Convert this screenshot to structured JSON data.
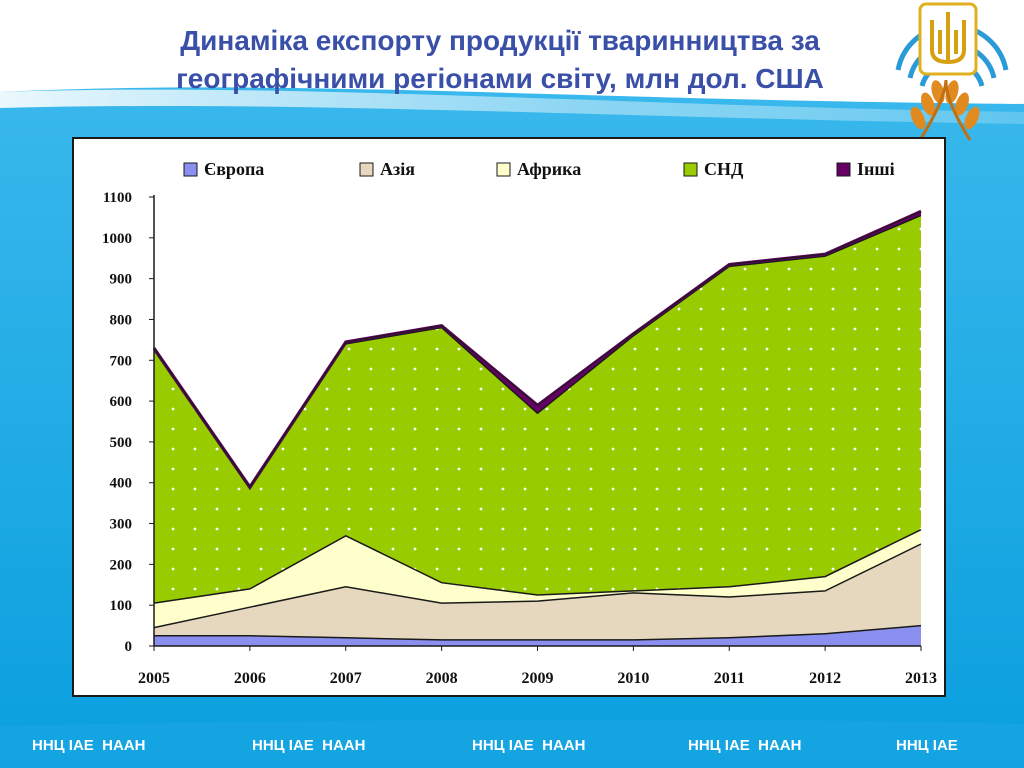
{
  "title_line1": "Динаміка експорту продукції тваринництва за",
  "title_line2": "географічними регіонами світу, млн дол. США",
  "footer": [
    "ННЦ ІАЕ  НААН",
    "ННЦ ІАЕ  НААН",
    "ННЦ ІАЕ  НААН",
    "ННЦ ІАЕ  НААН",
    "ННЦ ІАЕ"
  ],
  "colors": {
    "background_band": "#0aa3e0",
    "title": "#3a4fa8",
    "europe": "#8b8ff0",
    "asia": "#e6d8bf",
    "africa": "#ffffcc",
    "cis": "#99cc00",
    "other": "#660066"
  },
  "logo": {
    "icon": "tryzub-wheat-emblem-icon"
  },
  "chart_data": {
    "type": "area",
    "stacked": true,
    "categories": [
      "2005",
      "2006",
      "2007",
      "2008",
      "2009",
      "2010",
      "2011",
      "2012",
      "2013"
    ],
    "series": [
      {
        "name": "Європа",
        "color": "#8b8ff0",
        "values": [
          25,
          25,
          20,
          15,
          15,
          15,
          20,
          30,
          50
        ]
      },
      {
        "name": "Азія",
        "color": "#e6d8bf",
        "values": [
          20,
          70,
          125,
          90,
          95,
          115,
          100,
          105,
          200
        ]
      },
      {
        "name": "Африка",
        "color": "#ffffcc",
        "values": [
          60,
          45,
          125,
          50,
          15,
          5,
          25,
          35,
          35
        ]
      },
      {
        "name": "СНД",
        "color": "#99cc00",
        "values": [
          620,
          245,
          470,
          625,
          445,
          625,
          785,
          785,
          770
        ]
      },
      {
        "name": "Інші",
        "color": "#660066",
        "values": [
          5,
          5,
          5,
          5,
          20,
          5,
          5,
          5,
          10
        ]
      }
    ],
    "ylim": [
      0,
      1100
    ],
    "yticks": [
      "0",
      "100",
      "200",
      "300",
      "400",
      "500",
      "600",
      "700",
      "800",
      "900",
      "1000",
      "1100"
    ],
    "xlabel": "",
    "ylabel": "",
    "legend_position": "top",
    "grid": false
  }
}
